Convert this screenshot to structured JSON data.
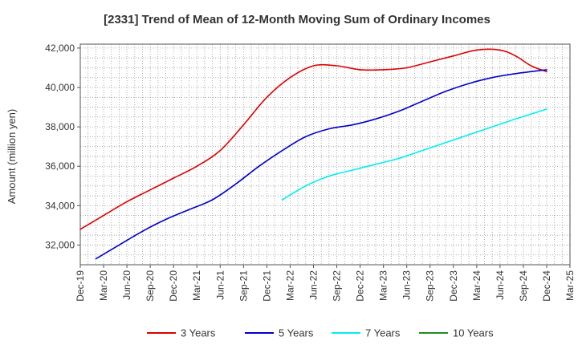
{
  "chart_data": {
    "type": "line",
    "title": "[2331]  Trend of Mean of 12-Month Moving Sum of Ordinary Incomes",
    "xlabel": "",
    "ylabel": "Amount (million yen)",
    "ylim": [
      31000,
      42200
    ],
    "yticks": [
      32000,
      34000,
      36000,
      38000,
      40000,
      42000
    ],
    "ytick_labels": [
      "32,000",
      "34,000",
      "36,000",
      "38,000",
      "40,000",
      "42,000"
    ],
    "xlim": [
      0,
      63
    ],
    "xtick_labels": [
      "Dec-19",
      "Mar-20",
      "Jun-20",
      "Sep-20",
      "Dec-20",
      "Mar-21",
      "Jun-21",
      "Sep-21",
      "Dec-21",
      "Mar-22",
      "Jun-22",
      "Sep-22",
      "Dec-22",
      "Mar-23",
      "Jun-23",
      "Sep-23",
      "Dec-23",
      "Mar-24",
      "Jun-24",
      "Sep-24",
      "Dec-24",
      "Mar-25"
    ],
    "x_note": "x values are month indices where 0 = Dec-19",
    "grid": true,
    "legend_position": "bottom",
    "series": [
      {
        "name": "3 Years",
        "color": "#dd0000",
        "x": [
          0,
          3,
          6,
          9,
          12,
          15,
          18,
          21,
          24,
          27,
          30,
          33,
          36,
          39,
          42,
          45,
          48,
          51,
          54,
          56,
          58,
          60
        ],
        "values": [
          32800,
          33500,
          34200,
          34800,
          35400,
          36000,
          36800,
          38100,
          39500,
          40500,
          41100,
          41100,
          40900,
          40900,
          41000,
          41300,
          41600,
          41900,
          41900,
          41600,
          41100,
          40800
        ]
      },
      {
        "name": "5 Years",
        "color": "#0000cc",
        "x": [
          2,
          5,
          8,
          11,
          14,
          17,
          20,
          23,
          26,
          29,
          32,
          35,
          38,
          41,
          44,
          47,
          50,
          53,
          56,
          60
        ],
        "values": [
          31300,
          32000,
          32700,
          33300,
          33800,
          34300,
          35100,
          36000,
          36800,
          37500,
          37900,
          38100,
          38400,
          38800,
          39300,
          39800,
          40200,
          40500,
          40700,
          40900
        ]
      },
      {
        "name": "7 Years",
        "color": "#00eeee",
        "x": [
          26,
          29,
          32,
          35,
          38,
          41,
          44,
          47,
          50,
          53,
          56,
          60
        ],
        "values": [
          34300,
          35000,
          35500,
          35800,
          36100,
          36400,
          36800,
          37200,
          37600,
          38000,
          38400,
          38900
        ]
      },
      {
        "name": "10 Years",
        "color": "#228b22",
        "x": [],
        "values": []
      }
    ]
  }
}
